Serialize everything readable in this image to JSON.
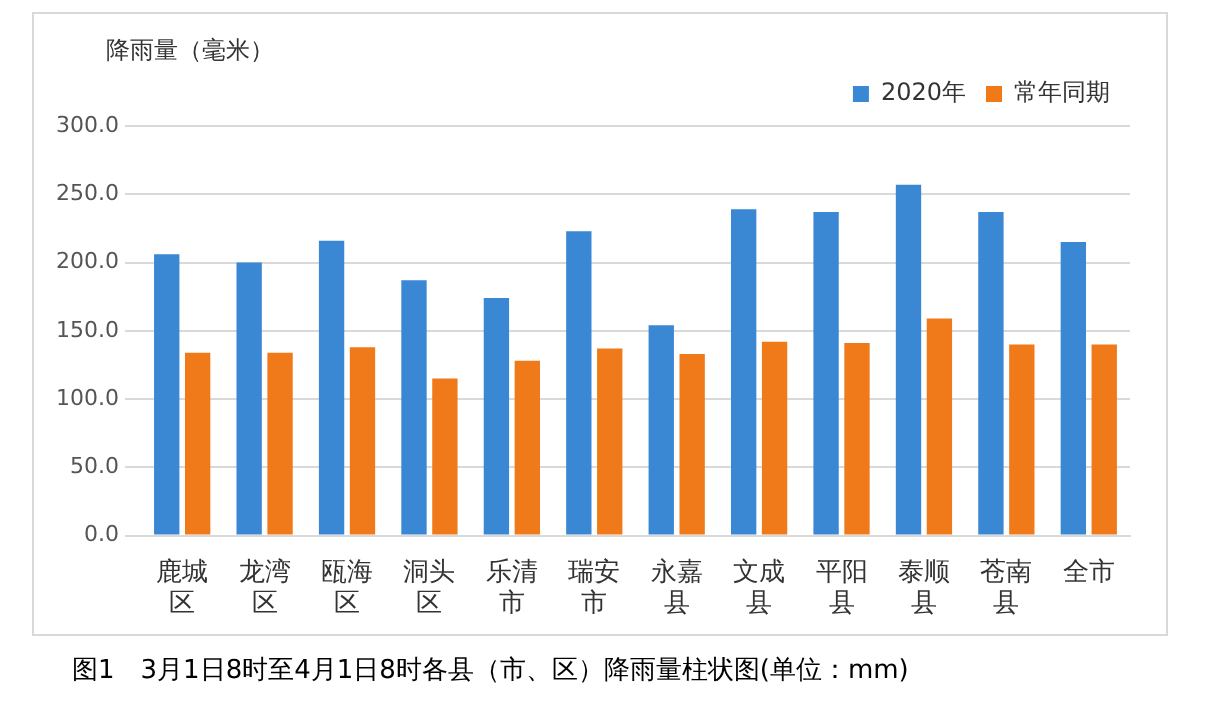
{
  "chart_data": {
    "type": "bar",
    "ylabel": "降雨量（毫米）",
    "categories": [
      "鹿城区",
      "龙湾区",
      "瓯海区",
      "洞头区",
      "乐清市",
      "瑞安市",
      "永嘉县",
      "文成县",
      "平阳县",
      "泰顺县",
      "苍南县",
      "全市"
    ],
    "series": [
      {
        "name": "2020年",
        "color": "#3a87d4",
        "values": [
          206,
          200,
          216,
          187,
          174,
          223,
          154,
          239,
          237,
          257,
          237,
          215
        ]
      },
      {
        "name": "常年同期",
        "color": "#f07a1a",
        "values": [
          134,
          134,
          138,
          115,
          128,
          137,
          133,
          142,
          141,
          159,
          140,
          140
        ]
      }
    ],
    "ylim": [
      0,
      300
    ],
    "yticks": [
      {
        "value": 0,
        "label": "0.0"
      },
      {
        "value": 50,
        "label": "50.0"
      },
      {
        "value": 100,
        "label": "100.0"
      },
      {
        "value": 150,
        "label": "150.0"
      },
      {
        "value": 200,
        "label": "200.0"
      },
      {
        "value": 250,
        "label": "250.0"
      },
      {
        "value": 300,
        "label": "300.0"
      }
    ],
    "grid": "y",
    "legend": "top right",
    "annotations": [
      "图1　3月1日8时至4月1日8时各县（市、区）降雨量柱状图(单位：mm)"
    ]
  }
}
